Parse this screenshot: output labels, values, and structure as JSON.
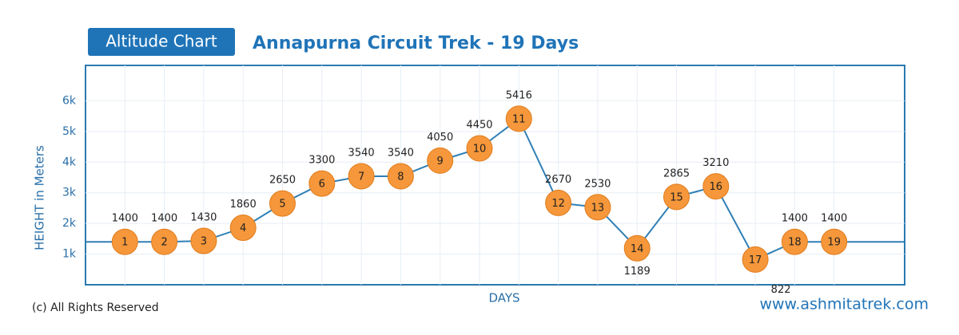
{
  "chart_data": {
    "type": "line",
    "badge": "Altitude Chart",
    "title": "Annapurna Circuit Trek - 19 Days",
    "y_label": "HEIGHT in Meters",
    "x_label": "DAYS",
    "footer_left": "(c) All Rights Reserved",
    "footer_right": "www.ashmitatrek.com",
    "categories": [
      "1",
      "2",
      "3",
      "4",
      "5",
      "6",
      "7",
      "8",
      "9",
      "10",
      "11",
      "12",
      "13",
      "14",
      "15",
      "16",
      "17",
      "18",
      "19"
    ],
    "series": [
      {
        "name": "Altitude",
        "color": "#2f7fb5",
        "values": [
          1400,
          1400,
          1430,
          1860,
          2650,
          3300,
          3540,
          3540,
          4050,
          4450,
          5416,
          2670,
          2530,
          1189,
          2865,
          3210,
          822,
          1400,
          1400
        ]
      }
    ],
    "marker_color": "#f5973a",
    "ylim": [
      0,
      7000
    ],
    "yticks": [
      {
        "value": 1000,
        "label": "1k"
      },
      {
        "value": 2000,
        "label": "2k"
      },
      {
        "value": 3000,
        "label": "3k"
      },
      {
        "value": 4000,
        "label": "4k"
      },
      {
        "value": 5000,
        "label": "5k"
      },
      {
        "value": 6000,
        "label": "6k"
      }
    ],
    "grid": true
  }
}
